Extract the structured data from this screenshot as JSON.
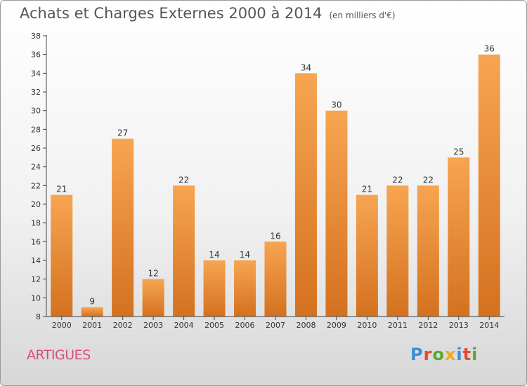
{
  "header": {
    "title": "Achats et Charges Externes 2000 à 2014",
    "unit": "(en milliers d'€)"
  },
  "footer": {
    "location": "ARTIGUES",
    "logo_text": "Proxiti",
    "logo_colors": [
      "#3a8fd8",
      "#e8492e",
      "#5aa832",
      "#f2a81d",
      "#3a8fd8",
      "#e8492e",
      "#5aa832"
    ]
  },
  "colors": {
    "bar_top": "#f7a552",
    "bar_bottom": "#d4711f",
    "location": "#d94c7a"
  },
  "chart_data": {
    "type": "bar",
    "title": "Achats et Charges Externes 2000 à 2014",
    "subtitle": "(en milliers d'€)",
    "xlabel": "",
    "ylabel": "",
    "categories": [
      "2000",
      "2001",
      "2002",
      "2003",
      "2004",
      "2005",
      "2006",
      "2007",
      "2008",
      "2009",
      "2010",
      "2011",
      "2012",
      "2013",
      "2014"
    ],
    "values": [
      21,
      9,
      27,
      12,
      22,
      14,
      14,
      16,
      34,
      30,
      21,
      22,
      22,
      25,
      36
    ],
    "ylim": [
      8,
      38
    ],
    "yticks": [
      8,
      10,
      12,
      14,
      16,
      18,
      20,
      22,
      24,
      26,
      28,
      30,
      32,
      34,
      36,
      38
    ],
    "grid": false,
    "legend": "none"
  }
}
